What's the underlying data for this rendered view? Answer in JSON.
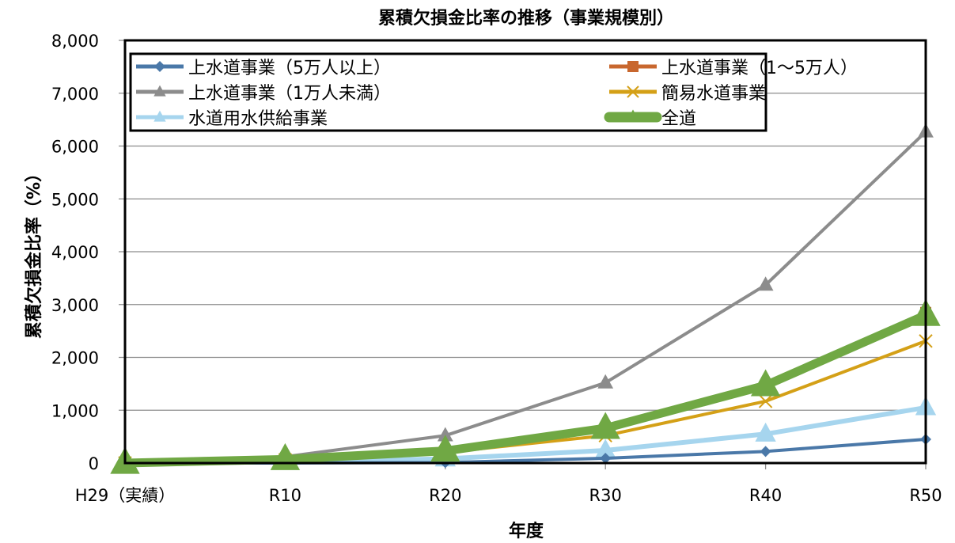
{
  "chart_data": {
    "type": "line",
    "title": "累積欠損金比率の推移（事業規模別）",
    "xlabel": "年度",
    "ylabel": "累積欠損金比率（%）",
    "categories": [
      "H29（実績）",
      "R10",
      "R20",
      "R30",
      "R40",
      "R50"
    ],
    "ylim": [
      0,
      8000
    ],
    "yticks": [
      0,
      1000,
      2000,
      3000,
      4000,
      5000,
      6000,
      7000,
      8000
    ],
    "ytick_labels": [
      "0",
      "1,000",
      "2,000",
      "3,000",
      "4,000",
      "5,000",
      "6,000",
      "7,000",
      "8,000"
    ],
    "grid": true,
    "legend": "top-left inside",
    "series": [
      {
        "name": "上水道事業（5万人以上）",
        "color": "#4a78a8",
        "marker": "diamond",
        "values": [
          0,
          0,
          10,
          90,
          220,
          450
        ]
      },
      {
        "name": "上水道事業（1～5万人）",
        "color": "#c8672e",
        "marker": "square",
        "values": [
          0,
          60,
          220,
          640,
          1440,
          2850
        ]
      },
      {
        "name": "上水道事業（1万人未満）",
        "color": "#8c8c8c",
        "marker": "triangle",
        "values": [
          0,
          120,
          520,
          1520,
          3370,
          6270
        ]
      },
      {
        "name": "簡易水道事業",
        "color": "#d4a017",
        "marker": "x",
        "values": [
          0,
          60,
          200,
          520,
          1170,
          2310
        ]
      },
      {
        "name": "水道用水供給事業",
        "color": "#a6d5ee",
        "marker": "triangle",
        "values": [
          0,
          20,
          80,
          240,
          550,
          1050
        ]
      },
      {
        "name": "全道",
        "color": "#70a844",
        "marker": "triangle",
        "values": [
          0,
          70,
          230,
          660,
          1470,
          2800
        ]
      }
    ]
  }
}
